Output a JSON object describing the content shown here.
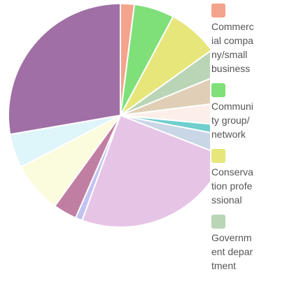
{
  "chart_data": {
    "type": "pie",
    "categories": [
      "Commercial company/small business",
      "Community group/network",
      "Conservation professional",
      "Government department",
      null,
      null,
      null,
      null,
      null,
      null,
      null,
      null,
      null,
      null
    ],
    "values": [
      2,
      5.8,
      7.3,
      3.7,
      4.2,
      3.5,
      1.5,
      2.9,
      24.6,
      1,
      3.4,
      7.4,
      4.9,
      27.7
    ],
    "colors": [
      "#f4a38c",
      "#7fe07a",
      "#e6e67a",
      "#b9d5b6",
      "#e0cfb6",
      "#fcefe9",
      "#70cfcd",
      "#c9d6e6",
      "#e6c4e6",
      "#c2c2f2",
      "#c07fa2",
      "#fbfbdd",
      "#def5f9",
      "#a06fa6"
    ]
  }
}
